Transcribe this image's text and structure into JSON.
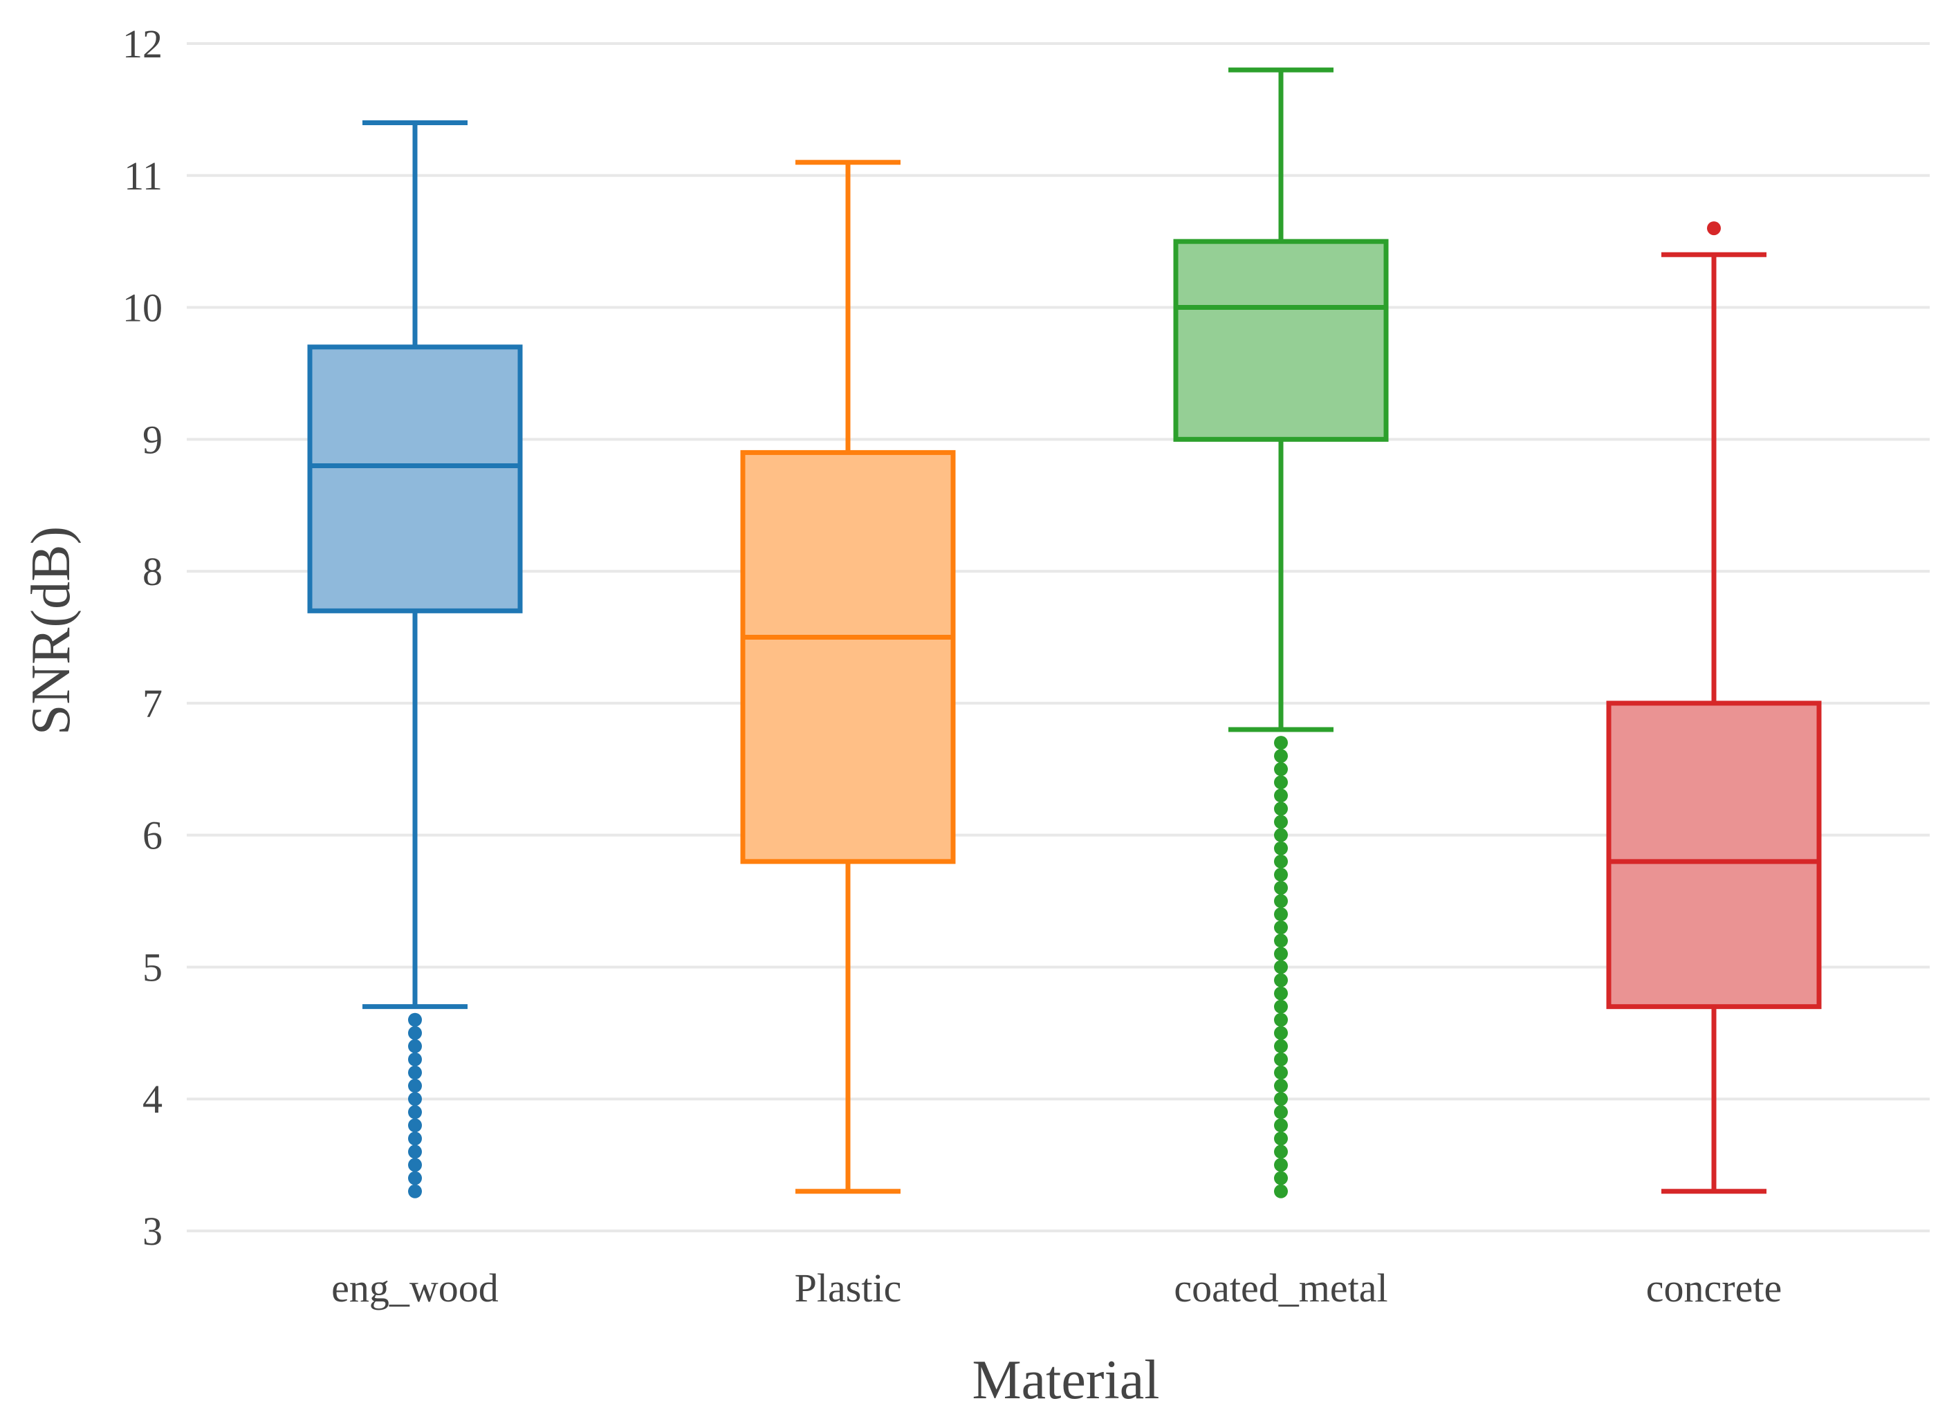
{
  "chart_data": {
    "type": "box",
    "title": "",
    "xlabel": "Material",
    "ylabel": "SNR(dB)",
    "ylim": [
      3,
      12
    ],
    "yticks": [
      3,
      4,
      5,
      6,
      7,
      8,
      9,
      10,
      11,
      12
    ],
    "grid": true,
    "series": [
      {
        "name": "eng_wood",
        "color": "#1f77b4",
        "fill": "#8fb9db",
        "whisker_low": 4.7,
        "q1": 7.7,
        "median": 8.8,
        "q3": 9.7,
        "whisker_high": 11.4,
        "outliers": [
          3.3,
          3.4,
          3.5,
          3.6,
          3.7,
          3.8,
          3.9,
          4.0,
          4.1,
          4.2,
          4.3,
          4.4,
          4.5,
          4.6
        ]
      },
      {
        "name": "Plastic",
        "color": "#ff7f0e",
        "fill": "#ffbf86",
        "whisker_low": 3.3,
        "q1": 5.8,
        "median": 7.5,
        "q3": 8.9,
        "whisker_high": 11.1,
        "outliers": []
      },
      {
        "name": "coated_metal",
        "color": "#2ca02c",
        "fill": "#95cf95",
        "whisker_low": 6.8,
        "q1": 9.0,
        "median": 10.0,
        "q3": 10.5,
        "whisker_high": 11.8,
        "outliers": [
          3.3,
          3.4,
          3.5,
          3.6,
          3.7,
          3.8,
          3.9,
          4.0,
          4.1,
          4.2,
          4.3,
          4.4,
          4.5,
          4.6,
          4.7,
          4.8,
          4.9,
          5.0,
          5.1,
          5.2,
          5.3,
          5.4,
          5.5,
          5.6,
          5.7,
          5.8,
          5.9,
          6.0,
          6.1,
          6.2,
          6.3,
          6.4,
          6.5,
          6.6,
          6.7
        ]
      },
      {
        "name": "concrete",
        "color": "#d62728",
        "fill": "#ea9393",
        "whisker_low": 3.3,
        "q1": 4.7,
        "median": 5.8,
        "q3": 7.0,
        "whisker_high": 10.4,
        "outliers": [
          10.6
        ]
      }
    ]
  }
}
